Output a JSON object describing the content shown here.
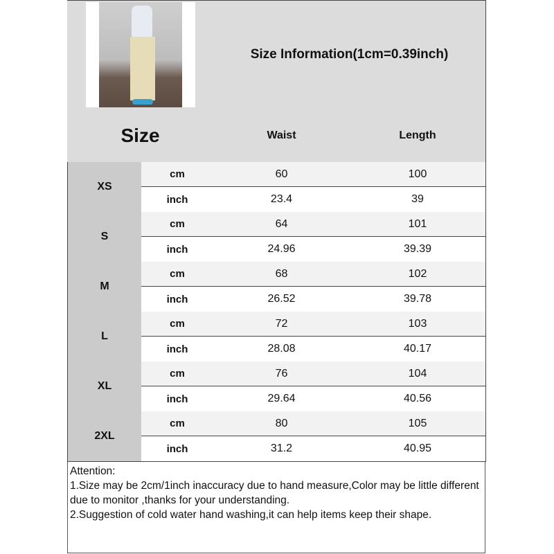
{
  "title": "Size Information(1cm=0.39inch)",
  "header": {
    "size": "Size",
    "waist": "Waist",
    "length": "Length"
  },
  "rows": [
    {
      "size": "XS",
      "cm": {
        "unit": "cm",
        "waist": "60",
        "length": "100"
      },
      "inch": {
        "unit": "inch",
        "waist": "23.4",
        "length": "39"
      }
    },
    {
      "size": "S",
      "cm": {
        "unit": "cm",
        "waist": "64",
        "length": "101"
      },
      "inch": {
        "unit": "inch",
        "waist": "24.96",
        "length": "39.39"
      }
    },
    {
      "size": "M",
      "cm": {
        "unit": "cm",
        "waist": "68",
        "length": "102"
      },
      "inch": {
        "unit": "inch",
        "waist": "26.52",
        "length": "39.78"
      }
    },
    {
      "size": "L",
      "cm": {
        "unit": "cm",
        "waist": "72",
        "length": "103"
      },
      "inch": {
        "unit": "inch",
        "waist": "28.08",
        "length": "40.17"
      }
    },
    {
      "size": "XL",
      "cm": {
        "unit": "cm",
        "waist": "76",
        "length": "104"
      },
      "inch": {
        "unit": "inch",
        "waist": "29.64",
        "length": "40.56"
      }
    },
    {
      "size": "2XL",
      "cm": {
        "unit": "cm",
        "waist": "80",
        "length": "105"
      },
      "inch": {
        "unit": "inch",
        "waist": "31.2",
        "length": "40.95"
      }
    }
  ],
  "attention": {
    "heading": "Attention:",
    "line1": "1.Size may be 2cm/1inch inaccuracy due to hand measure,Color may be little different due to monitor ,thanks for your understanding.",
    "line2": "2.Suggestion of cold water hand washing,it can help items keep their shape."
  }
}
